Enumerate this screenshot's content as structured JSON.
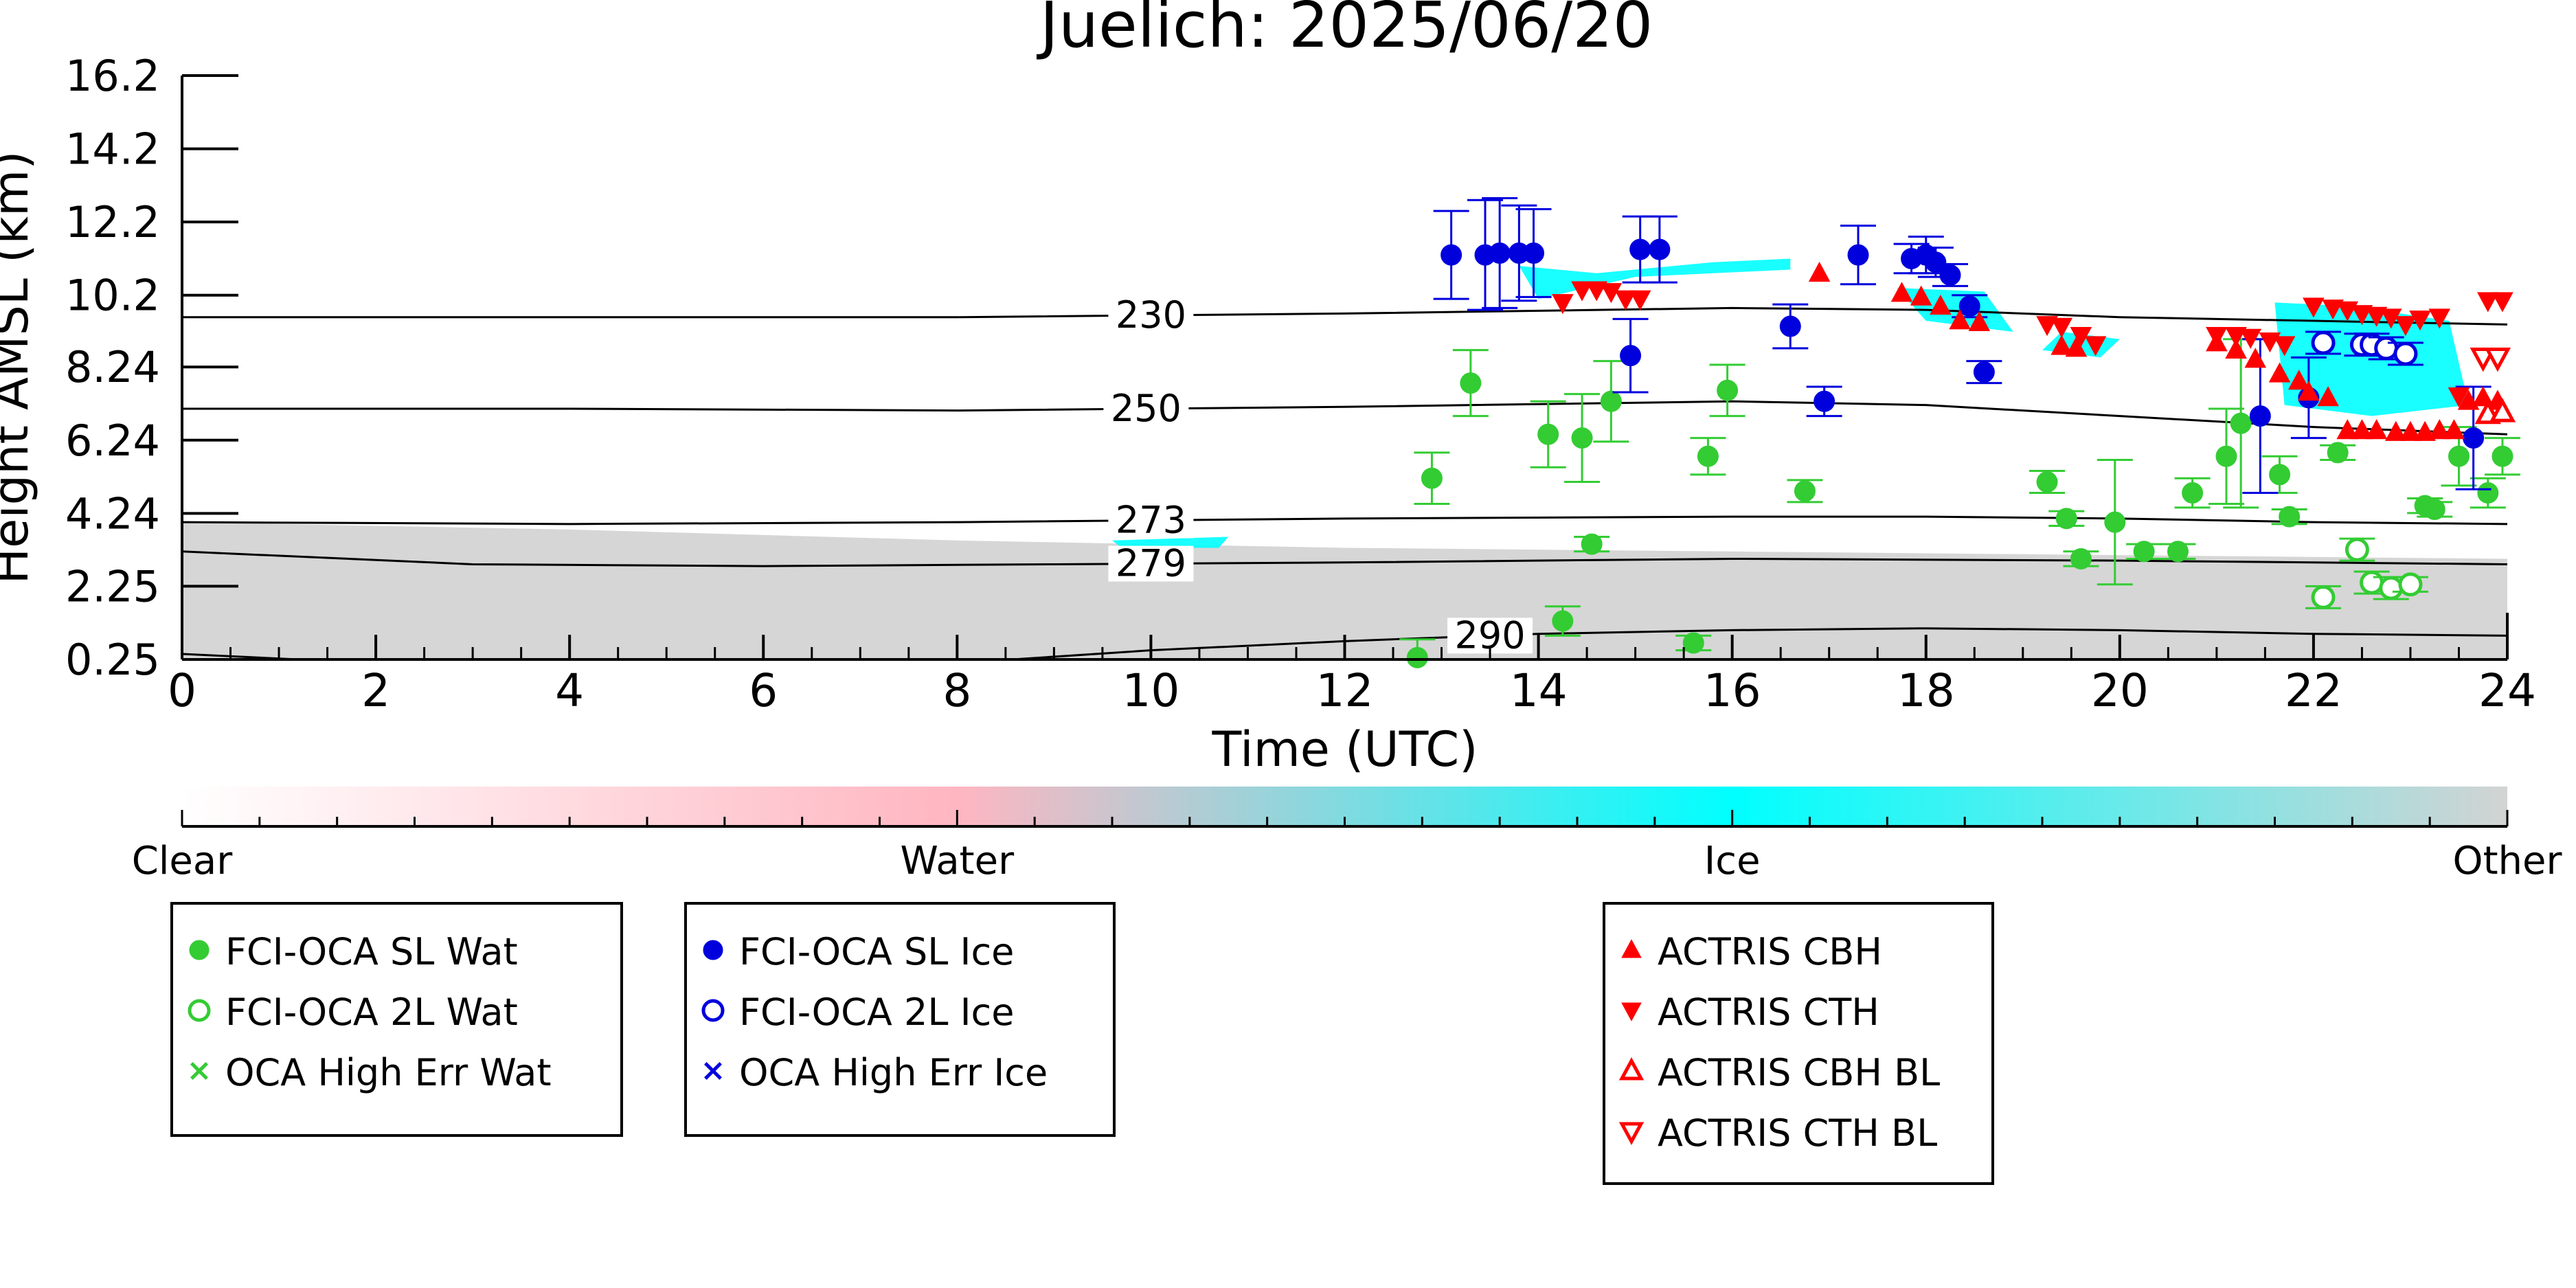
{
  "chart_data": {
    "type": "scatter",
    "title": "Juelich: 2025/06/20",
    "xlabel": "Time (UTC)",
    "ylabel": "Height AMSL (km)",
    "xlim": [
      0,
      24
    ],
    "ylim": [
      0.25,
      16.2
    ],
    "x_ticks": [
      0,
      2,
      4,
      6,
      8,
      10,
      12,
      14,
      16,
      18,
      20,
      22,
      24
    ],
    "y_ticks": [
      0.25,
      2.25,
      4.24,
      6.24,
      8.24,
      10.2,
      12.2,
      14.2,
      16.2
    ],
    "y_tick_labels": [
      "0.25",
      "2.25",
      "4.24",
      "6.24",
      "8.24",
      "10.2",
      "12.2",
      "14.2",
      "16.2"
    ],
    "grid": false,
    "colorbar": {
      "labels": [
        "Clear",
        "Water",
        "Ice",
        "Other"
      ],
      "colors": [
        "#ffffff",
        "#ffb6c1",
        "#00ffff",
        "#d3d3d3"
      ]
    },
    "isotherms": [
      {
        "label": "230",
        "label_x": 10.0,
        "points": [
          [
            0,
            9.6
          ],
          [
            4,
            9.6
          ],
          [
            8,
            9.6
          ],
          [
            12,
            9.7
          ],
          [
            16,
            9.85
          ],
          [
            18,
            9.8
          ],
          [
            20,
            9.6
          ],
          [
            22,
            9.5
          ],
          [
            24,
            9.4
          ]
        ]
      },
      {
        "label": "250",
        "label_x": 9.95,
        "points": [
          [
            0,
            7.1
          ],
          [
            4,
            7.1
          ],
          [
            8,
            7.05
          ],
          [
            12,
            7.15
          ],
          [
            16,
            7.3
          ],
          [
            18,
            7.2
          ],
          [
            20,
            6.9
          ],
          [
            22,
            6.6
          ],
          [
            24,
            6.4
          ]
        ]
      },
      {
        "label": "273",
        "label_x": 10.0,
        "points": [
          [
            0,
            4.0
          ],
          [
            4,
            3.95
          ],
          [
            8,
            4.0
          ],
          [
            12,
            4.1
          ],
          [
            16,
            4.15
          ],
          [
            18,
            4.15
          ],
          [
            20,
            4.1
          ],
          [
            22,
            4.0
          ],
          [
            24,
            3.95
          ]
        ]
      },
      {
        "label": "279",
        "label_x": 10.0,
        "points": [
          [
            0,
            3.2
          ],
          [
            3,
            2.85
          ],
          [
            6,
            2.8
          ],
          [
            9,
            2.85
          ],
          [
            12,
            2.9
          ],
          [
            16,
            3.0
          ],
          [
            20,
            2.95
          ],
          [
            24,
            2.85
          ]
        ]
      },
      {
        "label": "290",
        "label_x": 13.5,
        "points": [
          [
            0,
            0.4
          ],
          [
            2,
            0.15
          ],
          [
            4,
            0.0
          ],
          [
            8,
            0.15
          ],
          [
            10,
            0.5
          ],
          [
            12,
            0.75
          ],
          [
            14,
            0.95
          ],
          [
            16,
            1.05
          ],
          [
            18,
            1.1
          ],
          [
            20,
            1.05
          ],
          [
            22,
            0.95
          ],
          [
            24,
            0.9
          ]
        ]
      }
    ],
    "series": [
      {
        "name": "FCI-OCA SL Wat",
        "marker": "filled-circle",
        "color": "#33cc33",
        "points": [
          {
            "x": 12.75,
            "y": 0.3,
            "err": 0.5
          },
          {
            "x": 12.9,
            "y": 5.2,
            "err": 0.7
          },
          {
            "x": 13.3,
            "y": 7.8,
            "err": 0.9
          },
          {
            "x": 14.1,
            "y": 6.4,
            "err": 0.9
          },
          {
            "x": 14.25,
            "y": 1.3,
            "err": 0.4
          },
          {
            "x": 14.45,
            "y": 6.3,
            "err": 1.2
          },
          {
            "x": 14.55,
            "y": 3.4,
            "err": 0.2
          },
          {
            "x": 14.75,
            "y": 7.3,
            "err": 1.1
          },
          {
            "x": 15.6,
            "y": 0.7,
            "err": 0.2
          },
          {
            "x": 15.75,
            "y": 5.8,
            "err": 0.5
          },
          {
            "x": 15.95,
            "y": 7.6,
            "err": 0.7
          },
          {
            "x": 16.75,
            "y": 4.85,
            "err": 0.3
          },
          {
            "x": 19.25,
            "y": 5.1,
            "err": 0.3
          },
          {
            "x": 19.45,
            "y": 4.1,
            "err": 0.2
          },
          {
            "x": 19.6,
            "y": 3.0,
            "err": 0.2
          },
          {
            "x": 19.95,
            "y": 4.0,
            "err": 1.7
          },
          {
            "x": 20.25,
            "y": 3.2,
            "err": 0.2
          },
          {
            "x": 20.6,
            "y": 3.2,
            "err": 0.2
          },
          {
            "x": 20.75,
            "y": 4.8,
            "err": 0.4
          },
          {
            "x": 21.1,
            "y": 5.8,
            "err": 1.3
          },
          {
            "x": 21.25,
            "y": 6.7,
            "err": 2.3
          },
          {
            "x": 21.65,
            "y": 5.3,
            "err": 0.5
          },
          {
            "x": 21.75,
            "y": 4.15,
            "err": 0.2
          },
          {
            "x": 22.25,
            "y": 5.9,
            "err": 0.2
          },
          {
            "x": 23.15,
            "y": 4.45,
            "err": 0.2
          },
          {
            "x": 23.25,
            "y": 4.35,
            "err": 0.2
          },
          {
            "x": 23.5,
            "y": 5.8,
            "err": 0.8
          },
          {
            "x": 23.8,
            "y": 4.8,
            "err": 0.4
          },
          {
            "x": 23.95,
            "y": 5.8,
            "err": 0.5
          }
        ]
      },
      {
        "name": "FCI-OCA 2L Wat",
        "marker": "open-circle",
        "color": "#33cc33",
        "points": [
          {
            "x": 22.1,
            "y": 1.95,
            "err": 0.3
          },
          {
            "x": 22.45,
            "y": 3.25,
            "err": 0.3
          },
          {
            "x": 22.6,
            "y": 2.35,
            "err": 0.3
          },
          {
            "x": 22.8,
            "y": 2.2,
            "err": 0.3
          },
          {
            "x": 23.0,
            "y": 2.3,
            "err": 0.2
          }
        ]
      },
      {
        "name": "OCA High Err Wat",
        "marker": "x",
        "color": "#33cc33",
        "points": []
      },
      {
        "name": "FCI-OCA SL Ice",
        "marker": "filled-circle",
        "color": "#0000dd",
        "points": [
          {
            "x": 13.1,
            "y": 11.3,
            "err": 1.2
          },
          {
            "x": 13.45,
            "y": 11.3,
            "err": 1.5
          },
          {
            "x": 13.6,
            "y": 11.35,
            "err": 1.5
          },
          {
            "x": 13.8,
            "y": 11.35,
            "err": 1.3
          },
          {
            "x": 13.95,
            "y": 11.35,
            "err": 1.2
          },
          {
            "x": 14.95,
            "y": 8.55,
            "err": 1.0
          },
          {
            "x": 15.05,
            "y": 11.45,
            "err": 0.9
          },
          {
            "x": 15.25,
            "y": 11.45,
            "err": 0.9
          },
          {
            "x": 16.6,
            "y": 9.35,
            "err": 0.6
          },
          {
            "x": 16.95,
            "y": 7.3,
            "err": 0.4
          },
          {
            "x": 17.3,
            "y": 11.3,
            "err": 0.8
          },
          {
            "x": 17.85,
            "y": 11.2,
            "err": 0.4
          },
          {
            "x": 18.0,
            "y": 11.3,
            "err": 0.5
          },
          {
            "x": 18.1,
            "y": 11.1,
            "err": 0.4
          },
          {
            "x": 18.25,
            "y": 10.75,
            "err": 0.3
          },
          {
            "x": 18.45,
            "y": 9.9,
            "err": 0.3
          },
          {
            "x": 18.6,
            "y": 8.1,
            "err": 0.3
          },
          {
            "x": 21.45,
            "y": 6.9,
            "err": 2.1
          },
          {
            "x": 21.95,
            "y": 7.4,
            "err": 1.1
          },
          {
            "x": 23.65,
            "y": 6.3,
            "err": 1.4
          }
        ]
      },
      {
        "name": "FCI-OCA 2L Ice",
        "marker": "open-circle",
        "color": "#0000dd",
        "points": [
          {
            "x": 22.1,
            "y": 8.9,
            "err": 0.3
          },
          {
            "x": 22.5,
            "y": 8.85,
            "err": 0.3
          },
          {
            "x": 22.6,
            "y": 8.85,
            "err": 0.3
          },
          {
            "x": 22.75,
            "y": 8.75,
            "err": 0.3
          },
          {
            "x": 22.95,
            "y": 8.6,
            "err": 0.3
          }
        ]
      },
      {
        "name": "OCA High Err Ice",
        "marker": "x",
        "color": "#0000dd",
        "points": []
      },
      {
        "name": "ACTRIS CBH",
        "marker": "triangle-up",
        "color": "#ff0000",
        "points": [
          {
            "x": 16.9,
            "y": 10.8
          },
          {
            "x": 17.75,
            "y": 10.25
          },
          {
            "x": 17.95,
            "y": 10.15
          },
          {
            "x": 18.15,
            "y": 9.9
          },
          {
            "x": 18.35,
            "y": 9.5
          },
          {
            "x": 18.55,
            "y": 9.45
          },
          {
            "x": 19.4,
            "y": 8.8
          },
          {
            "x": 19.55,
            "y": 8.75
          },
          {
            "x": 21.0,
            "y": 8.9
          },
          {
            "x": 21.2,
            "y": 8.7
          },
          {
            "x": 21.4,
            "y": 8.45
          },
          {
            "x": 21.65,
            "y": 8.05
          },
          {
            "x": 21.85,
            "y": 7.85
          },
          {
            "x": 21.95,
            "y": 7.55
          },
          {
            "x": 22.15,
            "y": 7.4
          },
          {
            "x": 22.35,
            "y": 6.5
          },
          {
            "x": 22.5,
            "y": 6.5
          },
          {
            "x": 22.65,
            "y": 6.5
          },
          {
            "x": 22.85,
            "y": 6.45
          },
          {
            "x": 23.0,
            "y": 6.45
          },
          {
            "x": 23.15,
            "y": 6.45
          },
          {
            "x": 23.3,
            "y": 6.5
          },
          {
            "x": 23.45,
            "y": 6.5
          },
          {
            "x": 23.6,
            "y": 7.3
          },
          {
            "x": 23.75,
            "y": 7.4
          },
          {
            "x": 23.9,
            "y": 7.3
          }
        ]
      },
      {
        "name": "ACTRIS CTH",
        "marker": "triangle-down",
        "color": "#ff0000",
        "points": [
          {
            "x": 14.25,
            "y": 10.0
          },
          {
            "x": 14.45,
            "y": 10.35
          },
          {
            "x": 14.6,
            "y": 10.35
          },
          {
            "x": 14.75,
            "y": 10.3
          },
          {
            "x": 14.9,
            "y": 10.1
          },
          {
            "x": 15.05,
            "y": 10.1
          },
          {
            "x": 19.25,
            "y": 9.4
          },
          {
            "x": 19.4,
            "y": 9.35
          },
          {
            "x": 19.6,
            "y": 9.1
          },
          {
            "x": 19.75,
            "y": 8.85
          },
          {
            "x": 21.0,
            "y": 9.1
          },
          {
            "x": 21.2,
            "y": 9.1
          },
          {
            "x": 21.35,
            "y": 9.05
          },
          {
            "x": 21.55,
            "y": 8.95
          },
          {
            "x": 21.7,
            "y": 8.85
          },
          {
            "x": 22.0,
            "y": 9.9
          },
          {
            "x": 22.2,
            "y": 9.85
          },
          {
            "x": 22.35,
            "y": 9.8
          },
          {
            "x": 22.5,
            "y": 9.7
          },
          {
            "x": 22.65,
            "y": 9.65
          },
          {
            "x": 22.8,
            "y": 9.6
          },
          {
            "x": 22.95,
            "y": 9.4
          },
          {
            "x": 23.1,
            "y": 9.55
          },
          {
            "x": 23.3,
            "y": 9.6
          },
          {
            "x": 23.5,
            "y": 7.45
          },
          {
            "x": 23.8,
            "y": 10.05
          },
          {
            "x": 23.95,
            "y": 10.05
          }
        ]
      },
      {
        "name": "ACTRIS CBH BL",
        "marker": "open-triangle-up",
        "color": "#ff0000",
        "points": [
          {
            "x": 23.8,
            "y": 6.95
          },
          {
            "x": 23.95,
            "y": 7.0
          }
        ]
      },
      {
        "name": "ACTRIS CTH BL",
        "marker": "open-triangle-down",
        "color": "#ff0000",
        "points": [
          {
            "x": 23.75,
            "y": 8.5
          },
          {
            "x": 23.9,
            "y": 8.5
          }
        ]
      }
    ],
    "legend_groups": [
      [
        "FCI-OCA SL Wat",
        "FCI-OCA 2L Wat",
        "OCA High Err Wat"
      ],
      [
        "FCI-OCA SL Ice",
        "FCI-OCA 2L Ice",
        "OCA High Err Ice"
      ],
      [
        "ACTRIS CBH",
        "ACTRIS CTH",
        "ACTRIS CBH BL",
        "ACTRIS CTH BL"
      ]
    ],
    "legend_placement": "below"
  }
}
